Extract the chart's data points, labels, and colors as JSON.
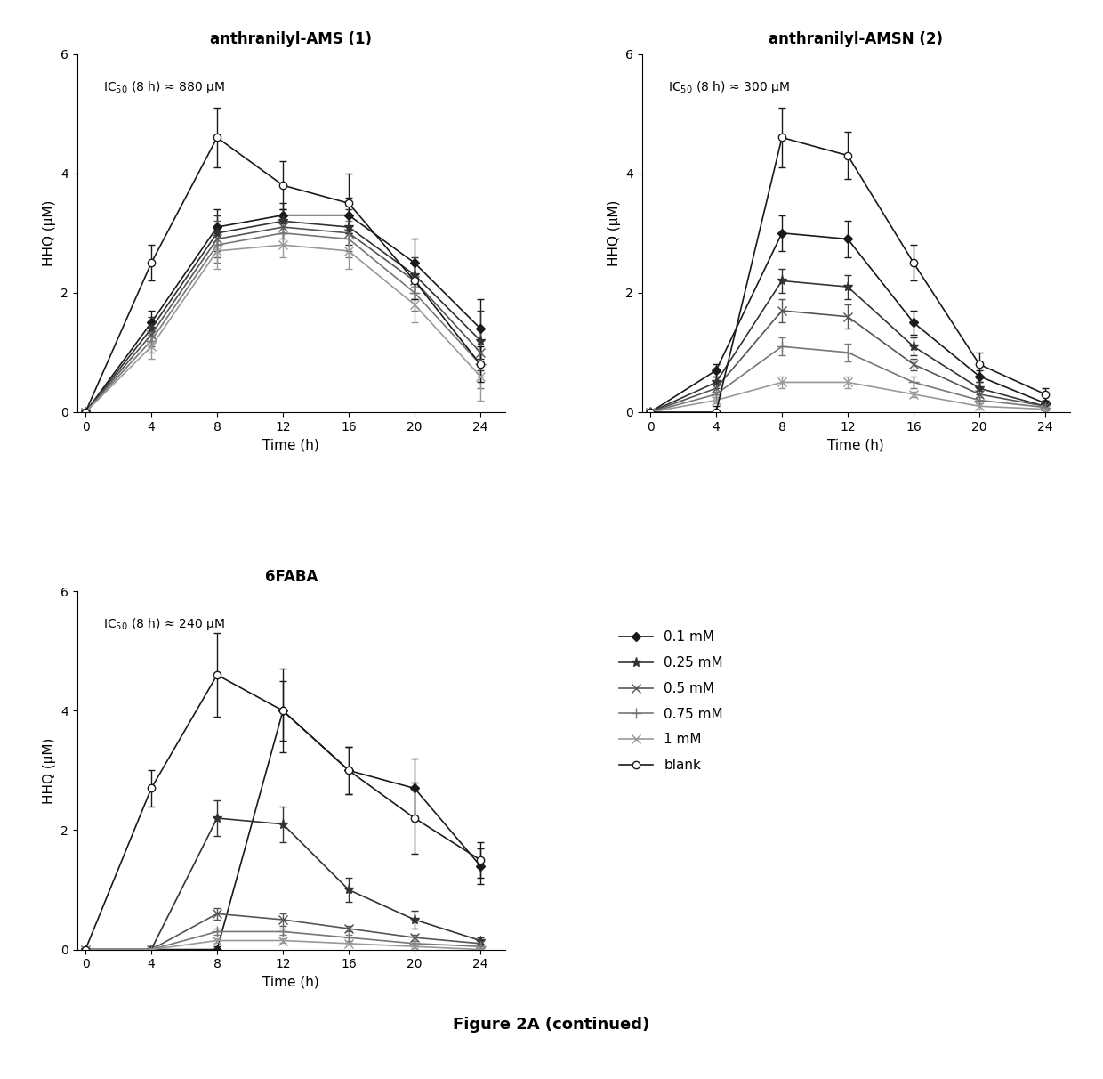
{
  "time_points": [
    0,
    4,
    8,
    12,
    16,
    20,
    24
  ],
  "panel1": {
    "title": "anthranilyl-AMS (1)",
    "ic50_text": "IC$_{50}$ (8 h) ≈ 880 μM",
    "series": {
      "blank": {
        "y": [
          0,
          2.5,
          4.6,
          3.8,
          3.5,
          2.2,
          0.8
        ],
        "yerr": [
          0,
          0.3,
          0.5,
          0.4,
          0.5,
          0.3,
          0.3
        ]
      },
      "0.1 mM": {
        "y": [
          0,
          1.5,
          3.1,
          3.3,
          3.3,
          2.5,
          1.4
        ],
        "yerr": [
          0,
          0.2,
          0.3,
          0.2,
          0.3,
          0.4,
          0.5
        ]
      },
      "0.25 mM": {
        "y": [
          0,
          1.4,
          3.0,
          3.2,
          3.1,
          2.3,
          1.2
        ],
        "yerr": [
          0,
          0.2,
          0.3,
          0.2,
          0.3,
          0.3,
          0.5
        ]
      },
      "0.5 mM": {
        "y": [
          0,
          1.3,
          2.9,
          3.1,
          3.0,
          2.2,
          1.0
        ],
        "yerr": [
          0,
          0.2,
          0.3,
          0.2,
          0.3,
          0.3,
          0.4
        ]
      },
      "0.75 mM": {
        "y": [
          0,
          1.2,
          2.8,
          3.0,
          2.9,
          2.0,
          0.8
        ],
        "yerr": [
          0,
          0.2,
          0.3,
          0.2,
          0.3,
          0.3,
          0.4
        ]
      },
      "1 mM": {
        "y": [
          0,
          1.1,
          2.7,
          2.8,
          2.7,
          1.8,
          0.6
        ],
        "yerr": [
          0,
          0.2,
          0.3,
          0.2,
          0.3,
          0.3,
          0.4
        ]
      }
    }
  },
  "panel2": {
    "title": "anthranilyl-AMSN (2)",
    "ic50_text": "IC$_{50}$ (8 h) ≈ 300 μM",
    "series": {
      "blank": {
        "y": [
          0,
          0.0,
          4.6,
          4.3,
          2.5,
          0.8,
          0.3
        ],
        "yerr": [
          0,
          0.1,
          0.5,
          0.4,
          0.3,
          0.2,
          0.1
        ]
      },
      "0.1 mM": {
        "y": [
          0,
          0.7,
          3.0,
          2.9,
          1.5,
          0.6,
          0.15
        ],
        "yerr": [
          0,
          0.1,
          0.3,
          0.3,
          0.2,
          0.1,
          0.05
        ]
      },
      "0.25 mM": {
        "y": [
          0,
          0.5,
          2.2,
          2.1,
          1.1,
          0.4,
          0.1
        ],
        "yerr": [
          0,
          0.1,
          0.2,
          0.2,
          0.15,
          0.1,
          0.05
        ]
      },
      "0.5 mM": {
        "y": [
          0,
          0.4,
          1.7,
          1.6,
          0.8,
          0.3,
          0.1
        ],
        "yerr": [
          0,
          0.1,
          0.2,
          0.2,
          0.1,
          0.1,
          0.05
        ]
      },
      "0.75 mM": {
        "y": [
          0,
          0.3,
          1.1,
          1.0,
          0.5,
          0.2,
          0.08
        ],
        "yerr": [
          0,
          0.05,
          0.15,
          0.15,
          0.1,
          0.05,
          0.03
        ]
      },
      "1 mM": {
        "y": [
          0,
          0.2,
          0.5,
          0.5,
          0.3,
          0.1,
          0.05
        ],
        "yerr": [
          0,
          0.05,
          0.1,
          0.1,
          0.05,
          0.05,
          0.02
        ]
      }
    }
  },
  "panel3": {
    "title": "6FABA",
    "ic50_text": "IC$_{50}$ (8 h) ≈ 240 μM",
    "series": {
      "blank": {
        "y": [
          0,
          2.7,
          4.6,
          4.0,
          3.0,
          2.2,
          1.5
        ],
        "yerr": [
          0,
          0.3,
          0.7,
          0.7,
          0.4,
          0.6,
          0.3
        ]
      },
      "0.1 mM": {
        "y": [
          0,
          0.0,
          0.0,
          4.0,
          3.0,
          2.7,
          1.4
        ],
        "yerr": [
          0,
          0.05,
          0.05,
          0.5,
          0.4,
          0.5,
          0.3
        ]
      },
      "0.25 mM": {
        "y": [
          0,
          0.0,
          2.2,
          2.1,
          1.0,
          0.5,
          0.15
        ],
        "yerr": [
          0,
          0.05,
          0.3,
          0.3,
          0.2,
          0.15,
          0.05
        ]
      },
      "0.5 mM": {
        "y": [
          0,
          0.0,
          0.6,
          0.5,
          0.35,
          0.2,
          0.1
        ],
        "yerr": [
          0,
          0.02,
          0.1,
          0.1,
          0.05,
          0.05,
          0.05
        ]
      },
      "0.75 mM": {
        "y": [
          0,
          0.0,
          0.3,
          0.3,
          0.2,
          0.1,
          0.05
        ],
        "yerr": [
          0,
          0.02,
          0.05,
          0.05,
          0.05,
          0.05,
          0.02
        ]
      },
      "1 mM": {
        "y": [
          0,
          0.0,
          0.15,
          0.15,
          0.1,
          0.05,
          0.0
        ],
        "yerr": [
          0,
          0.02,
          0.03,
          0.03,
          0.02,
          0.02,
          0.01
        ]
      }
    }
  },
  "series_styles": {
    "0.1 mM": {
      "color": "#1a1a1a",
      "marker": "D",
      "markersize": 5,
      "linestyle": "-",
      "label": "0.1 mM",
      "markerfacecolor": "#1a1a1a"
    },
    "0.25 mM": {
      "color": "#333333",
      "marker": "*",
      "markersize": 8,
      "linestyle": "-",
      "label": "0.25 mM",
      "markerfacecolor": "#333333"
    },
    "0.5 mM": {
      "color": "#555555",
      "marker": "x",
      "markersize": 7,
      "linestyle": "-",
      "label": "0.5 mM",
      "markerfacecolor": "#555555"
    },
    "0.75 mM": {
      "color": "#777777",
      "marker": "+",
      "markersize": 8,
      "linestyle": "-",
      "label": "0.75 mM",
      "markerfacecolor": "#777777"
    },
    "1 mM": {
      "color": "#999999",
      "marker": "x",
      "markersize": 7,
      "linestyle": "-",
      "label": "1 mM",
      "markerfacecolor": "#999999"
    },
    "blank": {
      "color": "#1a1a1a",
      "marker": "o",
      "markersize": 6,
      "linestyle": "-",
      "label": "blank",
      "markerfacecolor": "white"
    }
  },
  "series_order": [
    "0.1 mM",
    "0.25 mM",
    "0.5 mM",
    "0.75 mM",
    "1 mM",
    "blank"
  ],
  "ylabel": "HHQ (μM)",
  "xlabel": "Time (h)",
  "ylim": [
    0,
    6
  ],
  "yticks": [
    0,
    2,
    4,
    6
  ],
  "xticks": [
    0,
    4,
    8,
    12,
    16,
    20,
    24
  ],
  "figure_caption": "Figure 2A (continued)",
  "bg_color": "#ffffff"
}
